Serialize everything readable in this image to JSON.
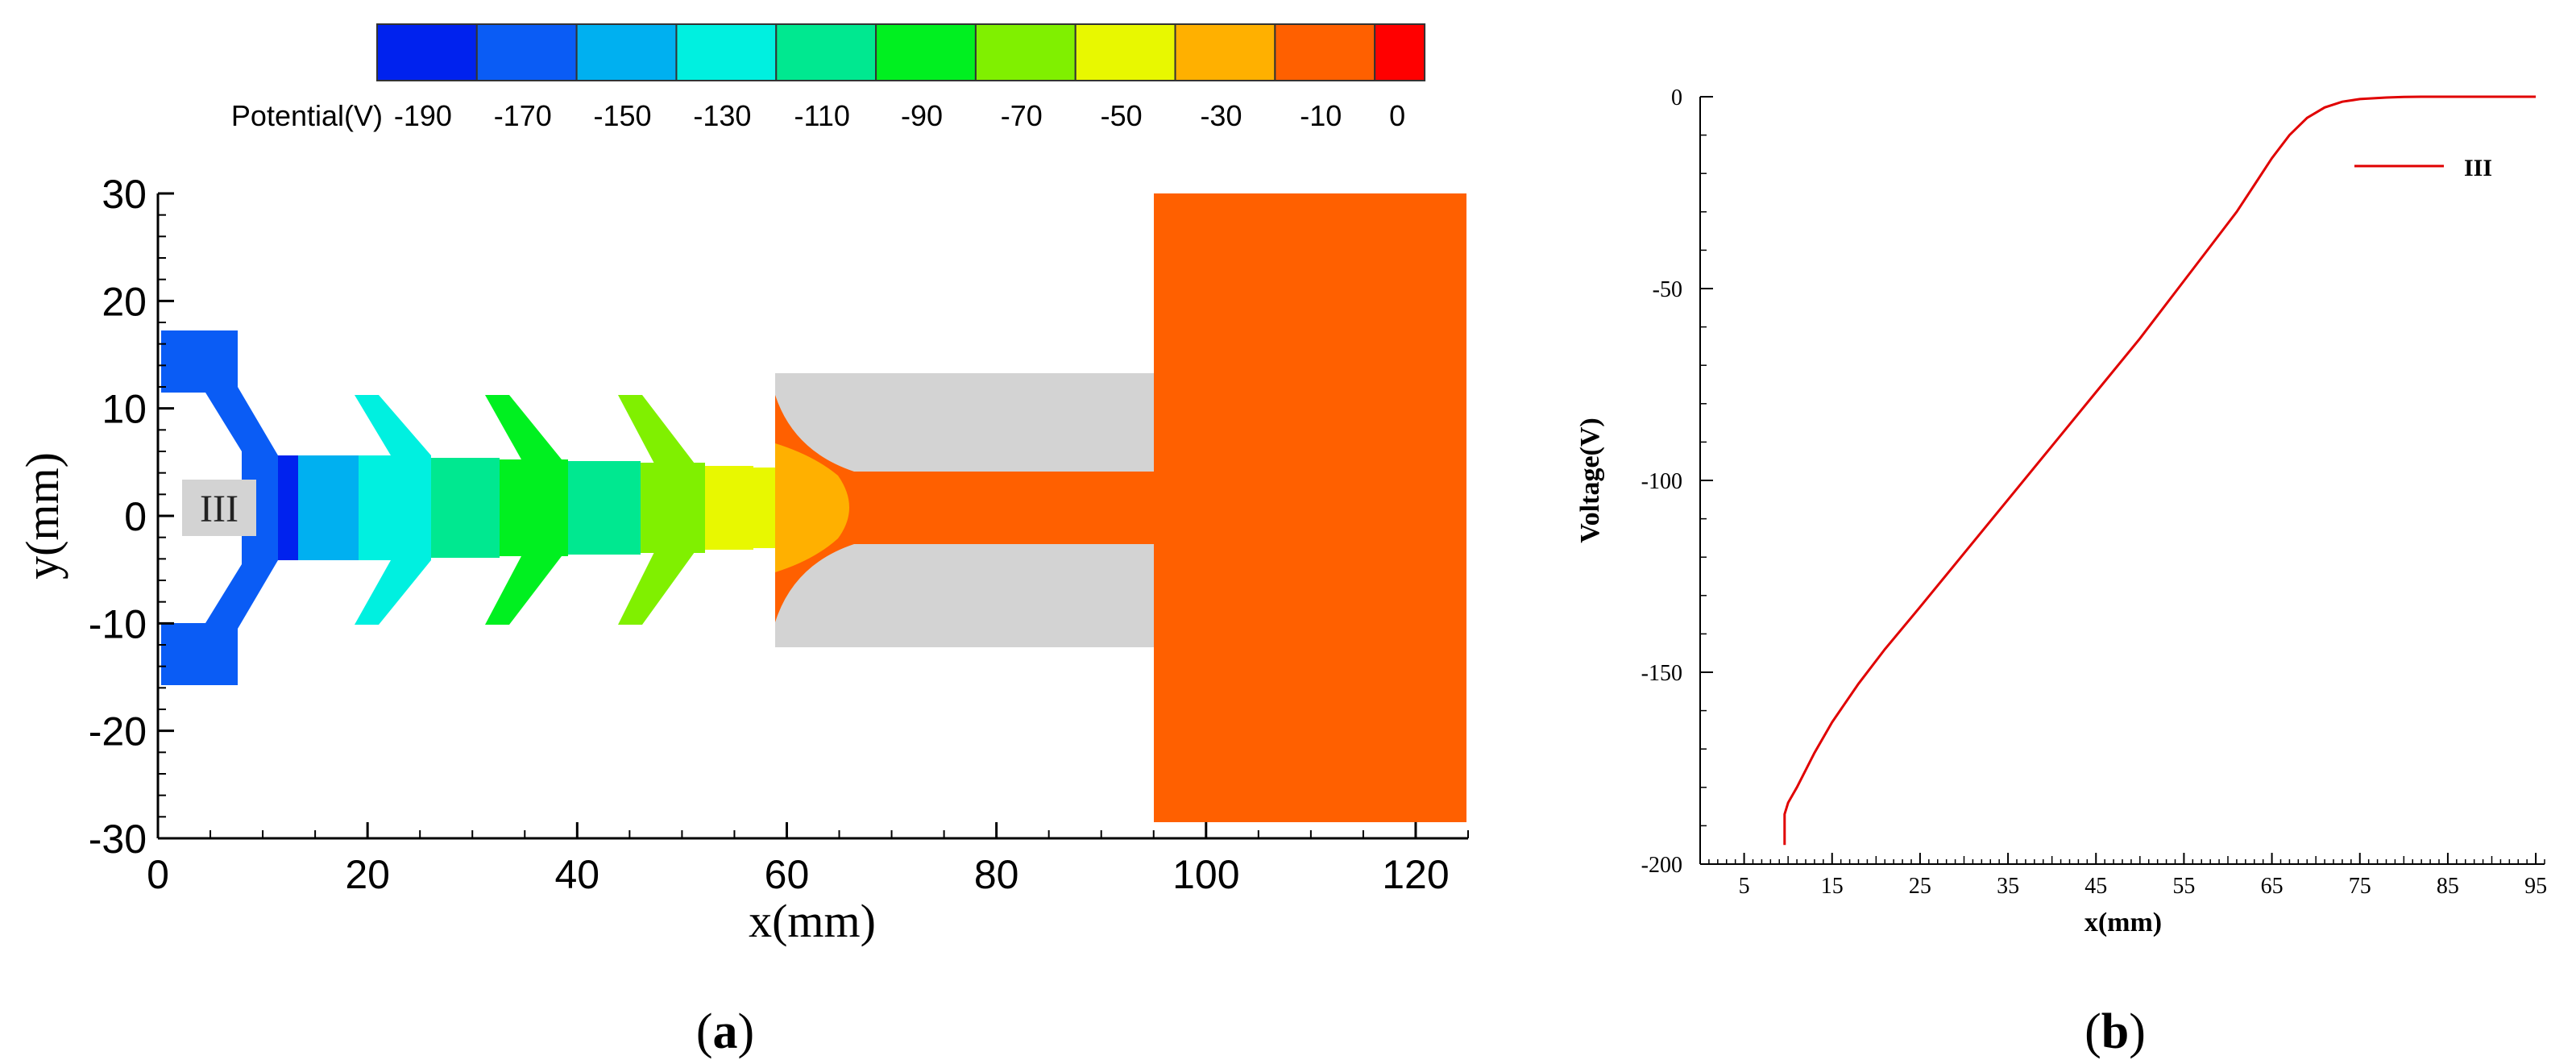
{
  "chart_data": [
    {
      "type": "heatmap",
      "panel_label": "a",
      "xlabel": "x(mm)",
      "ylabel": "y(mm)",
      "xlim": [
        0,
        125
      ],
      "ylim": [
        -30,
        30
      ],
      "xticks": [
        0,
        20,
        40,
        60,
        80,
        100,
        120
      ],
      "yticks": [
        30,
        20,
        10,
        0,
        -10,
        -20,
        -30
      ],
      "region_label": "III",
      "colorbar": {
        "title": "Potential(V)",
        "tick_labels": [
          "-190",
          "-170",
          "-150",
          "-130",
          "-110",
          "-90",
          "-70",
          "-50",
          "-30",
          "-10",
          "0"
        ],
        "colors": [
          "#0022ee",
          "#0a5cf5",
          "#00b0f0",
          "#00f0e0",
          "#00e890",
          "#00f020",
          "#80f000",
          "#e8f800",
          "#ffb000",
          "#ff6000",
          "#ff0000"
        ]
      },
      "gray_color": "#d3d3d3"
    },
    {
      "type": "line",
      "panel_label": "b",
      "xlabel": "x(mm)",
      "ylabel": "Voltage(V)",
      "xlim": [
        0,
        96
      ],
      "ylim": [
        -200,
        0
      ],
      "xticks": [
        5,
        15,
        25,
        35,
        45,
        55,
        65,
        75,
        85,
        95
      ],
      "yticks": [
        0,
        -50,
        -100,
        -150,
        -200
      ],
      "series": [
        {
          "name": "III",
          "color": "#e00000",
          "x": [
            9.6,
            9.6,
            10,
            11,
            13,
            15,
            18,
            21,
            25,
            30,
            35,
            40,
            45,
            50,
            55,
            58,
            61,
            63,
            65,
            67,
            69,
            71,
            73,
            75,
            78,
            80,
            82,
            85,
            90,
            95
          ],
          "y": [
            -195,
            -187,
            -184,
            -180,
            -171,
            -163,
            -153,
            -144,
            -133,
            -119,
            -105,
            -91,
            -77,
            -63,
            -48,
            -39,
            -30,
            -23,
            -16,
            -10,
            -5.5,
            -2.8,
            -1.3,
            -0.6,
            -0.2,
            -0.05,
            0,
            0,
            0,
            0
          ]
        }
      ]
    }
  ]
}
